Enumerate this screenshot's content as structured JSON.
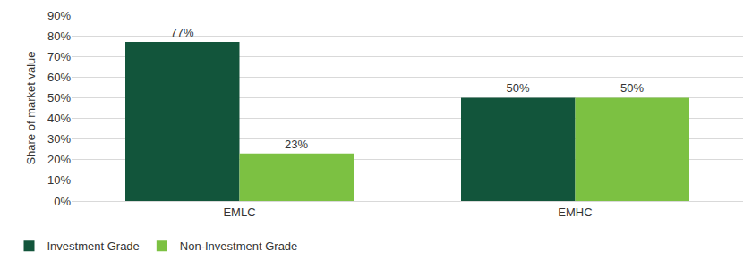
{
  "chart_data": {
    "type": "bar",
    "y_label": "Share of market value",
    "categories": [
      "EMLC",
      "EMHC"
    ],
    "series": [
      {
        "name": "Investment Grade",
        "color": "#12553b",
        "values": [
          77,
          50
        ],
        "value_labels": [
          "77%",
          "50%"
        ]
      },
      {
        "name": "Non-Investment Grade",
        "color": "#7cc142",
        "values": [
          23,
          50
        ],
        "value_labels": [
          "23%",
          "50%"
        ]
      }
    ],
    "ylim": [
      0,
      90
    ],
    "yticks": [
      {
        "value": 0,
        "label": "0%"
      },
      {
        "value": 10,
        "label": "10%"
      },
      {
        "value": 20,
        "label": "20%"
      },
      {
        "value": 30,
        "label": "30%"
      },
      {
        "value": 40,
        "label": "40%"
      },
      {
        "value": 50,
        "label": "50%"
      },
      {
        "value": 60,
        "label": "60%"
      },
      {
        "value": 70,
        "label": "70%"
      },
      {
        "value": 80,
        "label": "80%"
      },
      {
        "value": 90,
        "label": "90%"
      }
    ],
    "grid": true,
    "data_labels": true,
    "legend": "bottom left"
  }
}
